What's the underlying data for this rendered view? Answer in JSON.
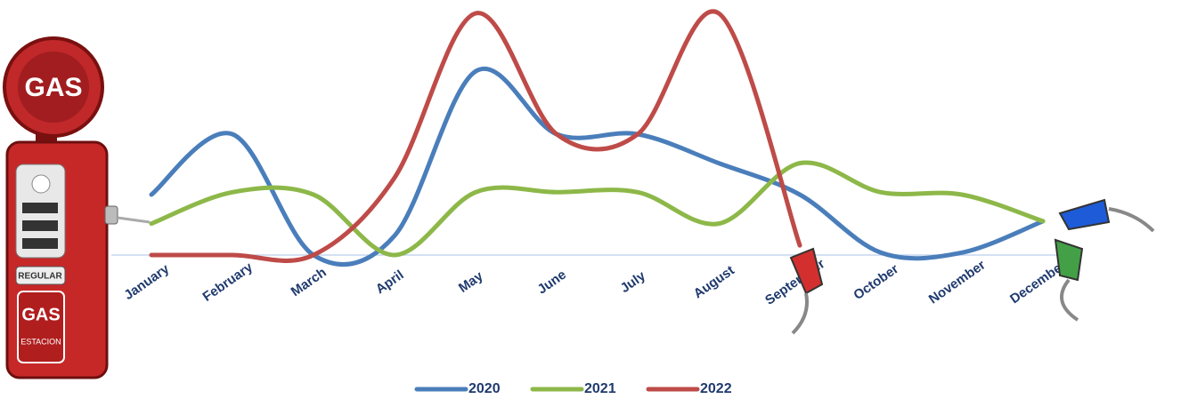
{
  "chart_data": {
    "type": "line",
    "categories": [
      "January",
      "February",
      "March",
      "April",
      "May",
      "June",
      "July",
      "August",
      "September",
      "October",
      "November",
      "December"
    ],
    "series": [
      {
        "name": "2020",
        "color": "#4a7ebb",
        "values": [
          25,
          50,
          0,
          8,
          76,
          50,
          50,
          38,
          25,
          1,
          1,
          14
        ]
      },
      {
        "name": "2021",
        "color": "#8db849",
        "values": [
          13,
          26,
          25,
          0,
          26,
          26,
          26,
          13,
          38,
          26,
          25,
          14
        ]
      },
      {
        "name": "2022",
        "color": "#be4b48",
        "values": [
          0,
          0,
          0,
          32,
          100,
          50,
          50,
          100,
          4,
          null,
          null,
          null
        ]
      }
    ],
    "ylim": [
      0,
      100
    ],
    "smooth": true,
    "legend": "bottom"
  }
}
